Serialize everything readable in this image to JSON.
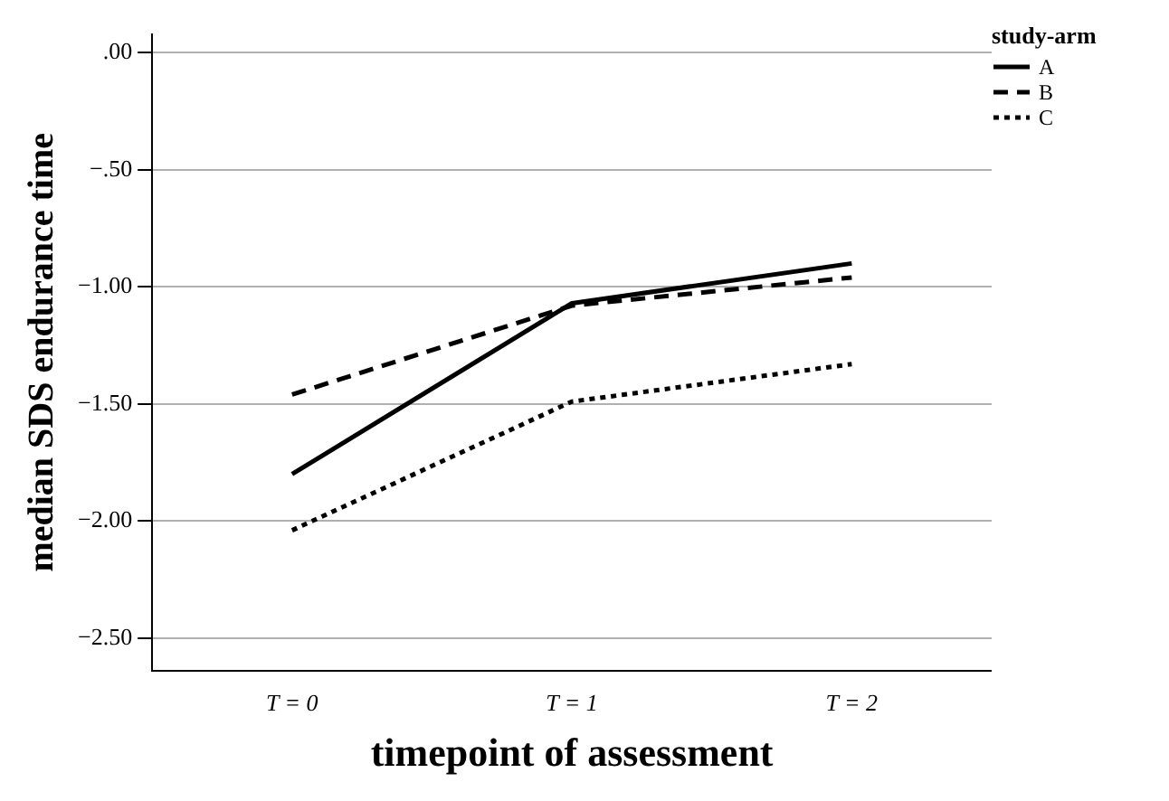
{
  "chart_data": {
    "type": "line",
    "xlabel": "timepoint of assessment",
    "ylabel": "median SDS endurance time",
    "legend_title": "study-arm",
    "categories": [
      "T = 0",
      "T = 1",
      "T = 2"
    ],
    "series": [
      {
        "name": "A",
        "color": "#000000",
        "line_style": "solid",
        "values": [
          -1.8,
          -1.07,
          -0.9
        ]
      },
      {
        "name": "B",
        "color": "#000000",
        "line_style": "dashed",
        "values": [
          -1.46,
          -1.08,
          -0.96
        ]
      },
      {
        "name": "C",
        "color": "#000000",
        "line_style": "dotted",
        "values": [
          -2.04,
          -1.49,
          -1.33
        ]
      }
    ],
    "ylim": [
      -2.64,
      0.08
    ],
    "yticks": [
      {
        "value": 0,
        "label": ".00"
      },
      {
        "value": -0.5,
        "label": "−.50"
      },
      {
        "value": -1,
        "label": "−1.00"
      },
      {
        "value": -1.5,
        "label": "−1.50"
      },
      {
        "value": -2,
        "label": "−2.00"
      },
      {
        "value": -2.5,
        "label": "−2.50"
      }
    ],
    "grid": "y",
    "legend": "top right",
    "marker": "none"
  }
}
